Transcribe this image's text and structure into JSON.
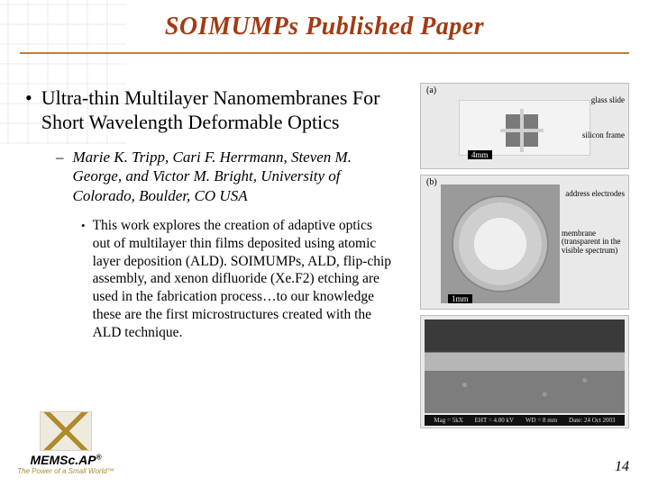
{
  "colors": {
    "title": "#a33a12",
    "rule": "#c47a3a",
    "text": "#000000",
    "paper_bg": "#ffffff",
    "logo_accent": "#b08b2e",
    "fig_border": "#bdbdbd"
  },
  "typography": {
    "title_fontsize_pt": 21,
    "title_style": "bold italic",
    "body_font": "Times New Roman",
    "lvl1_fontsize_pt": 16,
    "lvl2_fontsize_pt": 13,
    "lvl2_style": "italic",
    "lvl3_fontsize_pt": 12,
    "pageno_fontsize_pt": 12
  },
  "title": "SOIMUMPs Published Paper",
  "bullets": {
    "lvl1": {
      "marker": "•",
      "text": "Ultra-thin Multilayer Nanomembranes For Short Wavelength Deformable Optics"
    },
    "lvl2": {
      "marker": "–",
      "text": "Marie K. Tripp, Cari F. Herrmann, Steven M. George, and Victor M. Bright, University of Colorado, Boulder, CO USA"
    },
    "lvl3": {
      "marker": "•",
      "text": "This work explores the creation of adaptive optics out of multilayer thin films deposited using atomic layer deposition (ALD). SOIMUMPs, ALD, flip-chip assembly, and xenon difluoride (Xe.F2) etching are used in the fabrication process…to our knowledge these are the first microstructures created with the ALD technique."
    }
  },
  "figures": {
    "a": {
      "panel_label": "(a)",
      "caption_right_top": "glass slide",
      "caption_right_bottom": "silicon frame",
      "scale_bar": "4mm"
    },
    "b": {
      "panel_label": "(b)",
      "caption_right_top": "address\nelectrodes",
      "caption_right_bottom": "membrane\n(transparent\nin the visible\nspectrum)",
      "scale_bar": "1mm"
    },
    "c": {
      "sem_bar_items": [
        "Mag = 5kX",
        "EHT = 4.00 kV",
        "WD = 8 mm",
        "Date: 24 Oct 2003"
      ]
    }
  },
  "logo": {
    "brand": "MEMSc.AP",
    "reg": "®",
    "tagline": "The Power of a Small World™"
  },
  "page_number": "14"
}
